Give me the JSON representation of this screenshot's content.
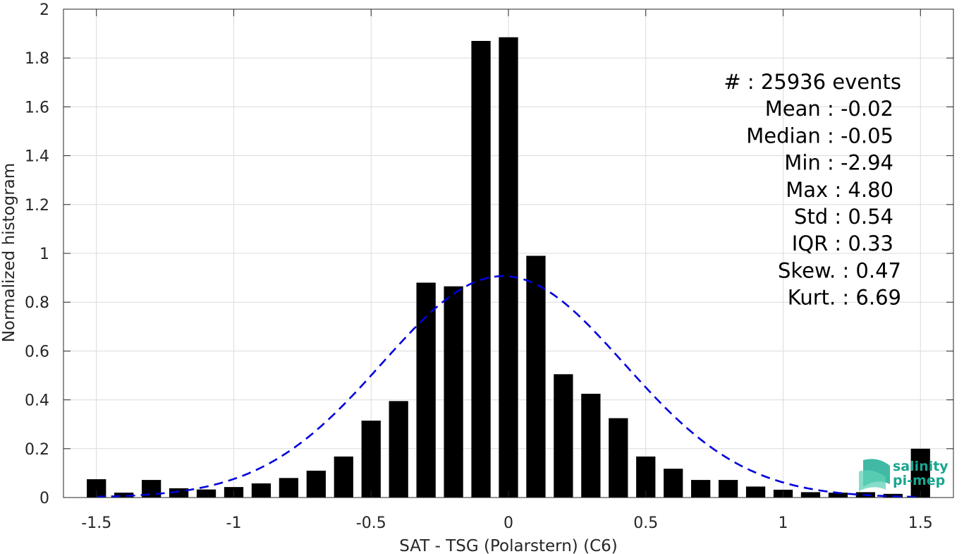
{
  "chart_data": {
    "type": "bar",
    "xlabel": "SAT - TSG (Polarstern) (C6)",
    "ylabel": "Normalized histogram",
    "xlim": [
      -1.62,
      1.62
    ],
    "ylim": [
      0,
      2
    ],
    "xticks": [
      -1.5,
      -1,
      -0.5,
      0,
      0.5,
      1,
      1.5
    ],
    "xtick_labels": [
      "-1.5",
      "-1",
      "-0.5",
      "0",
      "0.5",
      "1",
      "1.5"
    ],
    "yticks": [
      0,
      0.2,
      0.4,
      0.6,
      0.8,
      1,
      1.2,
      1.4,
      1.6,
      1.8,
      2
    ],
    "ytick_labels": [
      "0",
      "0.2",
      "0.4",
      "0.6",
      "0.8",
      "1",
      "1.2",
      "1.4",
      "1.6",
      "1.8",
      "2"
    ],
    "grid": true,
    "bar_color": "#000000",
    "bar_width": 0.07,
    "bins": [
      {
        "x": -1.5,
        "y": 0.075
      },
      {
        "x": -1.4,
        "y": 0.02
      },
      {
        "x": -1.3,
        "y": 0.072
      },
      {
        "x": -1.2,
        "y": 0.038
      },
      {
        "x": -1.1,
        "y": 0.033
      },
      {
        "x": -1.0,
        "y": 0.043
      },
      {
        "x": -0.9,
        "y": 0.058
      },
      {
        "x": -0.8,
        "y": 0.08
      },
      {
        "x": -0.7,
        "y": 0.11
      },
      {
        "x": -0.6,
        "y": 0.168
      },
      {
        "x": -0.5,
        "y": 0.315
      },
      {
        "x": -0.4,
        "y": 0.395
      },
      {
        "x": -0.3,
        "y": 0.88
      },
      {
        "x": -0.2,
        "y": 0.865
      },
      {
        "x": -0.1,
        "y": 1.87
      },
      {
        "x": 0.0,
        "y": 1.885
      },
      {
        "x": 0.1,
        "y": 0.99
      },
      {
        "x": 0.2,
        "y": 0.505
      },
      {
        "x": 0.3,
        "y": 0.425
      },
      {
        "x": 0.4,
        "y": 0.325
      },
      {
        "x": 0.5,
        "y": 0.168
      },
      {
        "x": 0.6,
        "y": 0.118
      },
      {
        "x": 0.7,
        "y": 0.072
      },
      {
        "x": 0.8,
        "y": 0.072
      },
      {
        "x": 0.9,
        "y": 0.045
      },
      {
        "x": 1.0,
        "y": 0.032
      },
      {
        "x": 1.1,
        "y": 0.022
      },
      {
        "x": 1.2,
        "y": 0.02
      },
      {
        "x": 1.3,
        "y": 0.022
      },
      {
        "x": 1.4,
        "y": 0.015
      },
      {
        "x": 1.5,
        "y": 0.2
      }
    ],
    "fit_curve": {
      "type": "gaussian",
      "mean": -0.02,
      "std": 0.44,
      "color": "#0000dd",
      "style": "dashed"
    },
    "annotations": [
      "#  : 25936 events",
      "Mean : -0.02",
      "Median : -0.05",
      "Min : -2.94",
      "Max : 4.80",
      "Std : 0.54",
      "IQR : 0.33",
      "Skew. : 0.47",
      "Kurt. : 6.69"
    ],
    "logo": {
      "line1": "salinity",
      "line2": "pi-mep"
    }
  }
}
